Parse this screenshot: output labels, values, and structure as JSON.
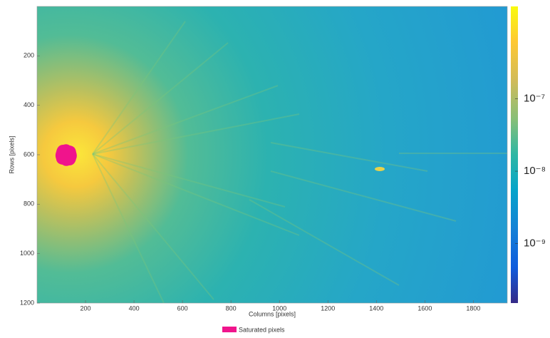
{
  "chart_data": {
    "type": "image",
    "x_label": "Columns [pixels]",
    "y_label": "Rows [pixels]",
    "xlim": [
      0,
      1940
    ],
    "ylim": [
      0,
      1200
    ],
    "xticks": [
      200,
      400,
      600,
      800,
      1000,
      1200,
      1400,
      1600,
      1800
    ],
    "yticks": [
      200,
      400,
      600,
      800,
      1000,
      1200
    ],
    "y_reversed": true,
    "colorbar": {
      "log_scale": true,
      "lim": [
        1.5e-10,
        1.9e-06
      ],
      "ticks": [
        {
          "value": 1e-07,
          "label": "10⁻⁷"
        },
        {
          "value": 1e-08,
          "label": "10⁻⁸"
        },
        {
          "value": 1e-09,
          "label": "10⁻⁹"
        }
      ]
    },
    "series": [
      {
        "name": "Saturated pixels",
        "color": "#f0148c",
        "x": [
          120
        ],
        "y": [
          600
        ]
      }
    ]
  }
}
